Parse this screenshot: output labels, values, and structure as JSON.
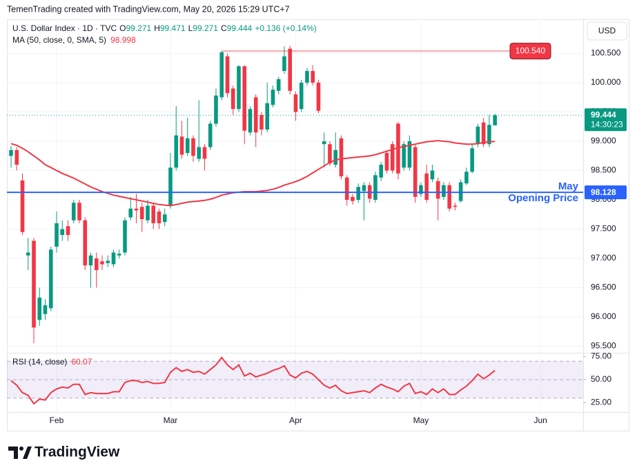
{
  "chart_data": {
    "type": "candlestick",
    "header": "TemenTrading created with TradingView.com, May 20, 2026 15:29 UTC+7",
    "title": "U.S. Dollar Index · 1D · TVC",
    "legend_labels": {
      "open": "O",
      "high": "H",
      "low": "L",
      "close": "C"
    },
    "change": "+0.136 (+0.14%)",
    "currency": "USD",
    "countdown": "14:30:23",
    "logo": "TradingView",
    "up_color": "#089981",
    "down_color": "#f23645",
    "grid": true,
    "ohlc": {
      "open": [
        98.75,
        98.85,
        98.33,
        97.05,
        97.3,
        95.95,
        96.05,
        96.15,
        97.2,
        97.4,
        97.55,
        97.65,
        97.95,
        97.65,
        96.88,
        97.0,
        96.95,
        96.92,
        96.9,
        97.05,
        97.1,
        97.7,
        97.85,
        97.88,
        97.65,
        97.9,
        97.8,
        97.62,
        97.9,
        98.55,
        99.08,
        98.8,
        99.05,
        98.7,
        98.9,
        98.9,
        99.3,
        99.75,
        100.45,
        99.9,
        99.55,
        100.28,
        99.15,
        99.75,
        99.45,
        99.2,
        99.62,
        99.86,
        100.2,
        100.58,
        99.8,
        99.55,
        100.0,
        100.2,
        100.0,
        98.95,
        98.95,
        98.6,
        99.05,
        98.38,
        98.05,
        98.0,
        98.15,
        98.25,
        98.0,
        98.38,
        98.8,
        98.95,
        99.3,
        98.55,
        98.55,
        98.9,
        98.1,
        98.45,
        98.35,
        98.32,
        98.05,
        98.25,
        97.9,
        97.98,
        98.28,
        98.48,
        98.95,
        99.32,
        98.95,
        99.271
      ],
      "high": [
        98.92,
        98.9,
        98.45,
        97.35,
        97.35,
        96.5,
        96.3,
        97.2,
        97.8,
        97.65,
        97.65,
        98.0,
        98.0,
        97.7,
        97.1,
        97.1,
        97.05,
        97.05,
        97.15,
        97.15,
        97.7,
        98.05,
        98.1,
        97.95,
        98.0,
        97.95,
        97.85,
        97.85,
        98.8,
        99.6,
        99.35,
        99.4,
        99.1,
        99.7,
        98.95,
        99.35,
        99.9,
        100.54,
        100.5,
        99.95,
        100.3,
        100.3,
        99.6,
        99.8,
        99.5,
        100.0,
        99.95,
        100.1,
        100.62,
        100.63,
        99.85,
        100.05,
        100.25,
        100.3,
        100.05,
        99.15,
        99.0,
        99.15,
        99.1,
        98.42,
        98.1,
        98.28,
        98.3,
        98.3,
        98.48,
        98.65,
        98.85,
        99.0,
        99.33,
        99.0,
        99.1,
        98.95,
        98.3,
        98.6,
        98.6,
        98.38,
        98.3,
        98.3,
        97.95,
        98.35,
        98.55,
        98.95,
        99.3,
        99.4,
        99.45,
        99.471
      ],
      "low": [
        98.55,
        98.5,
        97.4,
        96.8,
        95.55,
        95.85,
        95.95,
        96.1,
        97.1,
        97.3,
        97.3,
        97.6,
        97.6,
        96.8,
        96.5,
        96.5,
        96.8,
        96.85,
        96.85,
        97.0,
        97.05,
        97.65,
        97.6,
        97.45,
        97.6,
        97.5,
        97.5,
        97.55,
        97.85,
        98.5,
        98.7,
        98.75,
        98.65,
        98.65,
        98.5,
        98.85,
        99.25,
        99.7,
        99.75,
        99.45,
        99.5,
        98.95,
        99.1,
        98.9,
        99.1,
        99.15,
        99.58,
        99.8,
        100.15,
        99.8,
        99.35,
        99.5,
        99.95,
        99.95,
        99.48,
        98.55,
        98.58,
        98.55,
        98.35,
        97.9,
        97.92,
        97.95,
        97.65,
        97.95,
        97.95,
        98.32,
        98.45,
        98.45,
        98.35,
        98.5,
        98.5,
        97.95,
        98.05,
        97.95,
        98.3,
        97.65,
        98.0,
        97.8,
        97.82,
        97.95,
        98.25,
        98.45,
        98.9,
        98.9,
        98.9,
        99.271
      ],
      "close": [
        98.85,
        98.6,
        97.45,
        97.1,
        95.82,
        96.33,
        96.2,
        97.15,
        97.6,
        97.5,
        97.4,
        97.95,
        97.65,
        96.88,
        97.05,
        96.8,
        96.9,
        96.96,
        97.1,
        97.08,
        97.65,
        97.85,
        97.82,
        97.67,
        97.9,
        97.6,
        97.6,
        97.75,
        98.55,
        99.1,
        98.77,
        99.05,
        98.75,
        98.9,
        98.7,
        99.3,
        99.78,
        100.52,
        99.82,
        99.55,
        100.28,
        99.18,
        99.55,
        99.15,
        99.2,
        99.65,
        99.88,
        100.06,
        100.45,
        99.86,
        99.5,
        100.0,
        100.2,
        100.0,
        99.52,
        99.0,
        98.62,
        98.85,
        98.4,
        98.0,
        97.98,
        98.22,
        98.25,
        98.02,
        98.42,
        98.6,
        98.5,
        98.5,
        98.45,
        98.95,
        99.0,
        98.05,
        98.25,
        98.0,
        98.5,
        98.02,
        98.25,
        97.85,
        97.88,
        98.3,
        98.48,
        98.88,
        99.25,
        98.95,
        99.28,
        99.444
      ]
    },
    "ma": {
      "name": "MA (50, close, 0, SMA, 5)",
      "color": "#f23645",
      "values": [
        98.96,
        98.93,
        98.88,
        98.82,
        98.75,
        98.68,
        98.6,
        98.55,
        98.5,
        98.45,
        98.41,
        98.37,
        98.32,
        98.27,
        98.22,
        98.18,
        98.14,
        98.11,
        98.08,
        98.06,
        98.04,
        98.02,
        98.0,
        97.98,
        97.96,
        97.94,
        97.92,
        97.91,
        97.9,
        97.92,
        97.94,
        97.96,
        97.97,
        97.98,
        97.99,
        98.01,
        98.04,
        98.08,
        98.1,
        98.12,
        98.13,
        98.14,
        98.14,
        98.14,
        98.15,
        98.16,
        98.18,
        98.21,
        98.25,
        98.28,
        98.31,
        98.35,
        98.4,
        98.46,
        98.52,
        98.58,
        98.64,
        98.68,
        98.7,
        98.71,
        98.72,
        98.73,
        98.74,
        98.75,
        98.77,
        98.8,
        98.83,
        98.86,
        98.89,
        98.91,
        98.93,
        98.95,
        98.97,
        98.99,
        99.0,
        99.01,
        99.0,
        98.99,
        98.97,
        98.96,
        98.95,
        98.95,
        98.96,
        98.98,
        98.99,
        98.998
      ]
    },
    "xlim": [
      -0.73,
      100.5
    ],
    "xticks": [
      {
        "value": 8,
        "label": "Feb"
      },
      {
        "value": 28,
        "label": "Mar"
      },
      {
        "value": 50,
        "label": "Apr"
      },
      {
        "value": 72,
        "label": "May"
      },
      {
        "value": 93,
        "label": "Jun"
      }
    ],
    "ylim": [
      95.412,
      101.082
    ],
    "yticks": [
      {
        "value": 95.5,
        "label": "95.500"
      },
      {
        "value": 96,
        "label": "96.000"
      },
      {
        "value": 96.5,
        "label": "96.500"
      },
      {
        "value": 97,
        "label": "97.000"
      },
      {
        "value": 97.5,
        "label": "97.500"
      },
      {
        "value": 98,
        "label": "98.000"
      },
      {
        "value": 98.5,
        "label": "98.500"
      },
      {
        "value": 99,
        "label": "99.000"
      },
      {
        "value": 99.5,
        "label": "99.500"
      },
      {
        "value": 100,
        "label": "100.000"
      },
      {
        "value": 100.5,
        "label": "100.500"
      }
    ],
    "lines": [
      {
        "value": 100.54,
        "label": "100.540",
        "color": "#f23645"
      },
      {
        "value": 98.128,
        "color": "#2962ff",
        "title": [
          "May",
          "Opening Price"
        ]
      }
    ],
    "rsi": {
      "name": "RSI (14, close)",
      "color": "#f23645",
      "values": [
        49,
        44,
        36,
        33,
        24,
        29,
        28,
        36,
        40,
        42,
        41,
        45,
        45,
        34,
        36,
        35,
        35,
        35,
        37,
        37,
        47,
        49,
        49,
        47,
        48,
        46,
        46,
        47,
        58,
        63,
        59,
        61,
        58,
        59,
        56,
        61,
        66,
        74,
        66,
        61,
        66,
        54,
        57,
        53,
        55,
        57,
        60,
        62,
        65,
        55,
        52,
        57,
        59,
        56,
        50,
        44,
        41,
        44,
        38,
        35,
        36,
        37,
        38,
        36,
        41,
        45,
        42,
        40,
        37,
        43,
        46,
        35,
        37,
        34,
        40,
        36,
        40,
        34,
        34,
        39,
        43,
        49,
        56,
        51,
        55,
        60.07
      ],
      "ylim": [
        15.7,
        76.9
      ],
      "yticks": [
        {
          "value": 25,
          "label": "25.00"
        },
        {
          "value": 50,
          "label": "50.00"
        },
        {
          "value": 75,
          "label": "75.00"
        }
      ],
      "levels": [
        70,
        50,
        30
      ]
    }
  }
}
